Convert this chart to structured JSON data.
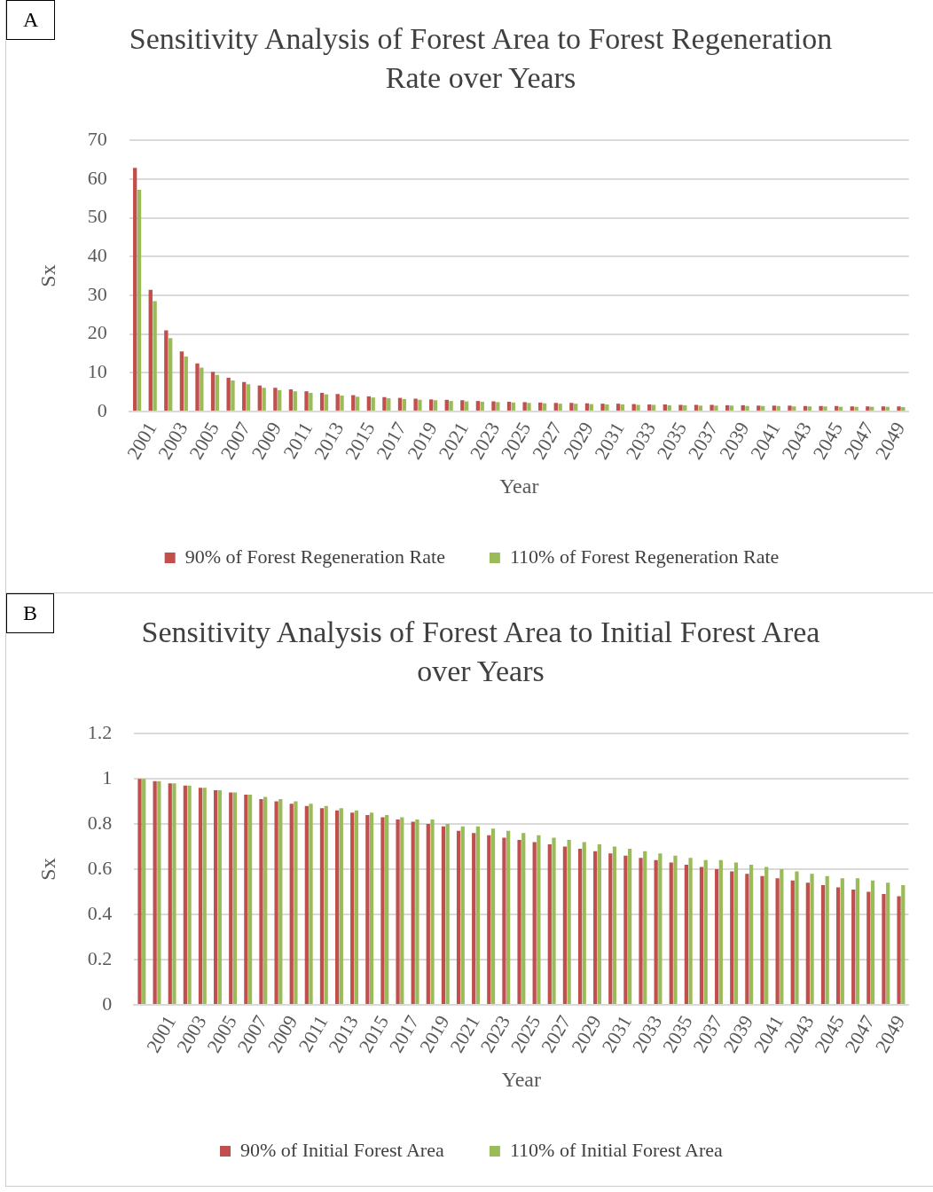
{
  "chart_data": [
    {
      "type": "bar",
      "title": "Sensitivity Analysis of Forest Area to Forest Regeneration Rate over Years",
      "xlabel": "Year",
      "ylabel": "Sx",
      "annotations": [
        "A"
      ],
      "categories": [
        null,
        "2001",
        null,
        "2003",
        null,
        "2005",
        null,
        "2007",
        null,
        "2009",
        null,
        "2011",
        null,
        "2013",
        null,
        "2015",
        null,
        "2017",
        null,
        "2019",
        null,
        "2021",
        null,
        "2023",
        null,
        "2025",
        null,
        "2027",
        null,
        "2029",
        null,
        "2031",
        null,
        "2033",
        null,
        "2035",
        null,
        "2037",
        null,
        "2039",
        null,
        "2041",
        null,
        "2043",
        null,
        "2045",
        null,
        "2047",
        null,
        "2049"
      ],
      "series": [
        {
          "name": "90% of Forest Regeneration Rate",
          "color": "#c0504d",
          "values": [
            62.9,
            31.4,
            20.9,
            15.5,
            12.4,
            10.2,
            8.7,
            7.6,
            6.7,
            6.1,
            5.7,
            5.2,
            4.8,
            4.5,
            4.2,
            3.9,
            3.7,
            3.5,
            3.3,
            3.1,
            3.0,
            2.9,
            2.7,
            2.6,
            2.5,
            2.4,
            2.3,
            2.2,
            2.2,
            2.1,
            2.0,
            2.0,
            1.9,
            1.8,
            1.8,
            1.7,
            1.7,
            1.7,
            1.6,
            1.6,
            1.5,
            1.5,
            1.5,
            1.4,
            1.4,
            1.4,
            1.3,
            1.3,
            1.3,
            1.3
          ]
        },
        {
          "name": "110% of Forest Regeneration Rate",
          "color": "#9bbb59",
          "values": [
            57.2,
            28.5,
            18.9,
            14.2,
            11.3,
            9.4,
            8.0,
            7.0,
            6.1,
            5.5,
            5.2,
            4.8,
            4.4,
            4.1,
            3.8,
            3.6,
            3.4,
            3.2,
            3.0,
            2.9,
            2.7,
            2.6,
            2.5,
            2.4,
            2.3,
            2.2,
            2.1,
            2.0,
            2.0,
            1.9,
            1.8,
            1.8,
            1.7,
            1.7,
            1.6,
            1.6,
            1.5,
            1.5,
            1.5,
            1.4,
            1.4,
            1.4,
            1.3,
            1.3,
            1.3,
            1.2,
            1.2,
            1.2,
            1.2,
            1.1
          ]
        }
      ],
      "ylim": [
        0,
        70
      ],
      "yticks": [
        0,
        10,
        20,
        30,
        40,
        50,
        60,
        70
      ],
      "grid": "y",
      "legend": "bottom"
    },
    {
      "type": "bar",
      "title": "Sensitivity Analysis of Forest Area to Initial Forest Area over Years",
      "xlabel": "Year",
      "ylabel": "Sx",
      "annotations": [
        "B"
      ],
      "categories": [
        null,
        null,
        "2001",
        null,
        "2003",
        null,
        "2005",
        null,
        "2007",
        null,
        "2009",
        null,
        "2011",
        null,
        "2013",
        null,
        "2015",
        null,
        "2017",
        null,
        "2019",
        null,
        "2021",
        null,
        "2023",
        null,
        "2025",
        null,
        "2027",
        null,
        "2029",
        null,
        "2031",
        null,
        "2033",
        null,
        "2035",
        null,
        "2037",
        null,
        "2039",
        null,
        "2041",
        null,
        "2043",
        null,
        "2045",
        null,
        "2047",
        null,
        "2049"
      ],
      "series": [
        {
          "name": "90% of Initial Forest Area",
          "color": "#c0504d",
          "values": [
            1.0,
            0.99,
            0.98,
            0.97,
            0.96,
            0.95,
            0.94,
            0.93,
            0.91,
            0.9,
            0.89,
            0.88,
            0.87,
            0.86,
            0.85,
            0.84,
            0.83,
            0.82,
            0.81,
            0.8,
            0.79,
            0.77,
            0.76,
            0.75,
            0.74,
            0.73,
            0.72,
            0.71,
            0.7,
            0.69,
            0.68,
            0.67,
            0.66,
            0.65,
            0.64,
            0.63,
            0.62,
            0.61,
            0.6,
            0.59,
            0.58,
            0.57,
            0.56,
            0.55,
            0.54,
            0.53,
            0.52,
            0.51,
            0.5,
            0.49,
            0.48
          ]
        },
        {
          "name": "110% of Initial Forest Area",
          "color": "#9bbb59",
          "values": [
            1.0,
            0.99,
            0.98,
            0.97,
            0.96,
            0.95,
            0.94,
            0.93,
            0.92,
            0.91,
            0.9,
            0.89,
            0.88,
            0.87,
            0.86,
            0.85,
            0.84,
            0.83,
            0.82,
            0.82,
            0.8,
            0.79,
            0.79,
            0.78,
            0.77,
            0.76,
            0.75,
            0.74,
            0.73,
            0.72,
            0.71,
            0.7,
            0.69,
            0.68,
            0.67,
            0.66,
            0.65,
            0.64,
            0.64,
            0.63,
            0.62,
            0.61,
            0.6,
            0.59,
            0.58,
            0.57,
            0.56,
            0.56,
            0.55,
            0.54,
            0.53
          ]
        }
      ],
      "ylim": [
        0,
        1.2
      ],
      "yticks": [
        0,
        0.2,
        0.4,
        0.6,
        0.8,
        1,
        1.2
      ],
      "grid": "y",
      "legend": "bottom"
    }
  ]
}
